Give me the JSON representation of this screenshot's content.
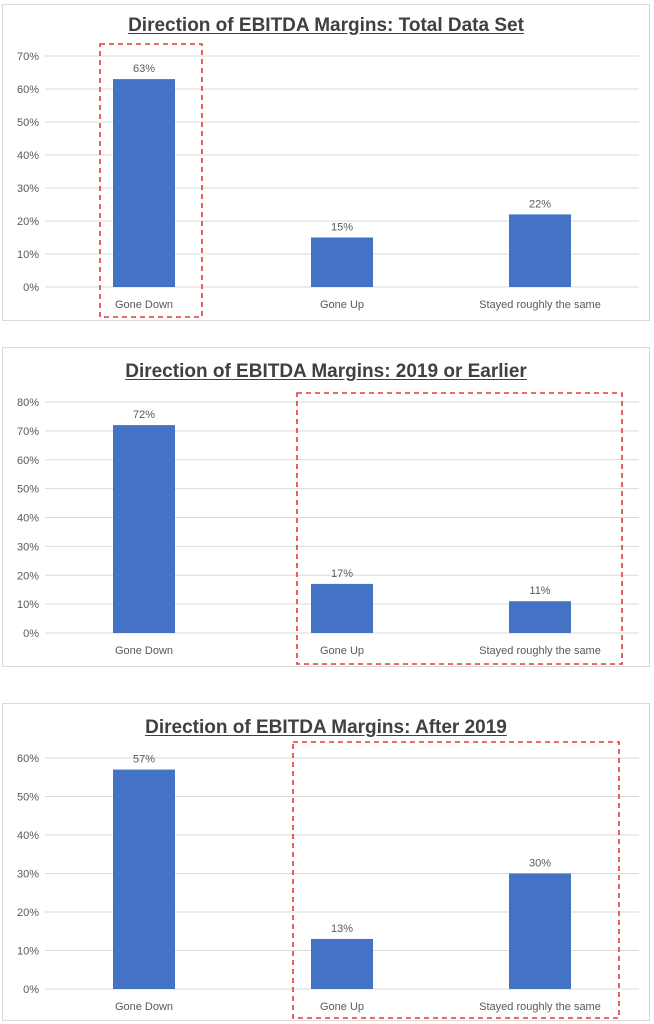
{
  "charts": [
    {
      "title": "Direction of EBITDA Margins: Total Data Set",
      "type": "bar",
      "categories": [
        "Gone Down",
        "Gone Up",
        "Stayed roughly the same"
      ],
      "values": [
        63,
        15,
        22
      ],
      "data_labels": [
        "63%",
        "15%",
        "22%"
      ],
      "ylim": [
        0,
        70
      ],
      "y_ticks": [
        "0%",
        "10%",
        "20%",
        "30%",
        "40%",
        "50%",
        "60%",
        "70%"
      ],
      "highlighted_categories": [
        "Gone Down"
      ]
    },
    {
      "title": "Direction of EBITDA Margins: 2019 or Earlier",
      "type": "bar",
      "categories": [
        "Gone Down",
        "Gone Up",
        "Stayed roughly the same"
      ],
      "values": [
        72,
        17,
        11
      ],
      "data_labels": [
        "72%",
        "17%",
        "11%"
      ],
      "ylim": [
        0,
        80
      ],
      "y_ticks": [
        "0%",
        "10%",
        "20%",
        "30%",
        "40%",
        "50%",
        "60%",
        "70%",
        "80%"
      ],
      "highlighted_categories": [
        "Gone Up",
        "Stayed roughly the same"
      ]
    },
    {
      "title": "Direction of EBITDA Margins: After 2019",
      "type": "bar",
      "categories": [
        "Gone Down",
        "Gone Up",
        "Stayed roughly the same"
      ],
      "values": [
        57,
        13,
        30
      ],
      "data_labels": [
        "57%",
        "13%",
        "30%"
      ],
      "ylim": [
        0,
        60
      ],
      "y_ticks": [
        "0%",
        "10%",
        "20%",
        "30%",
        "40%",
        "50%",
        "60%"
      ],
      "highlighted_categories": [
        "Gone Up",
        "Stayed roughly the same"
      ]
    }
  ],
  "chart_data": [
    {
      "type": "bar",
      "title": "Direction of EBITDA Margins: Total Data Set",
      "categories": [
        "Gone Down",
        "Gone Up",
        "Stayed roughly the same"
      ],
      "values": [
        63,
        15,
        22
      ],
      "unit": "%",
      "ylim": [
        0,
        70
      ],
      "grid": true,
      "legend": "none"
    },
    {
      "type": "bar",
      "title": "Direction of EBITDA Margins: 2019 or Earlier",
      "categories": [
        "Gone Down",
        "Gone Up",
        "Stayed roughly the same"
      ],
      "values": [
        72,
        17,
        11
      ],
      "unit": "%",
      "ylim": [
        0,
        80
      ],
      "grid": true,
      "legend": "none"
    },
    {
      "type": "bar",
      "title": "Direction of EBITDA Margins: After 2019",
      "categories": [
        "Gone Down",
        "Gone Up",
        "Stayed roughly the same"
      ],
      "values": [
        57,
        13,
        30
      ],
      "unit": "%",
      "ylim": [
        0,
        60
      ],
      "grid": true,
      "legend": "none"
    }
  ],
  "colors": {
    "bar": "#4472c4",
    "gridline": "#d9d9d9",
    "text": "#595959",
    "title": "#404040",
    "highlight": "#e03c3c"
  }
}
